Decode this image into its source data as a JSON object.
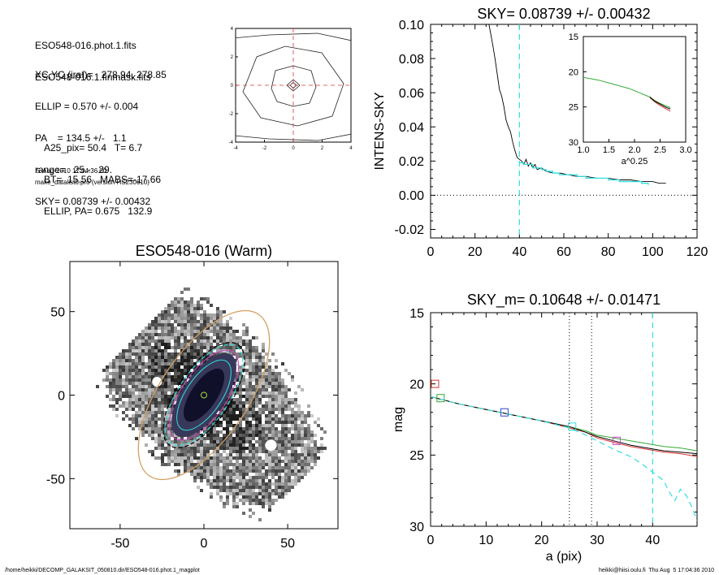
{
  "info": {
    "lines_a": [
      "ESO548-016.phot.1.fits",
      "ESO548-016.1.finmask.fits"
    ],
    "lines_b": [
      "XC,YC (iraf)=   278.94, 278.85",
      "ELLIP = 0.570 +/- 0.004",
      "PA    = 134.5 +/-   1.1",
      "range=   25.-   29.",
      "SKY= 0.08739 +/- 0.00432"
    ],
    "lines_c": [
      "A25_pix= 50.4   T= 6.7",
      "BT=  15.56   MABS=-17.66",
      "ELLIP, PA= 0.675   132.9"
    ],
    "date": "5-Aug-2010 17:04:36.00",
    "program": "make_datalist0.pro (version HS230610)"
  },
  "footer": {
    "left": "/home/heikki/DECOMP_GALAKSIT_050810.dir/ESO548-016.phot.1_magplot",
    "right": "heikki@hiisi.oulu.fi  Thu Aug  5 17:04:36 2010"
  },
  "colors": {
    "cyan": "#33dddd",
    "red": "#dd3333",
    "green": "#33aa33",
    "blue": "#3344cc",
    "magenta": "#cc44cc",
    "orange": "#d4a060"
  },
  "chart_data": [
    {
      "id": "contour",
      "type": "contour",
      "title": "",
      "xlim": [
        -4,
        4
      ],
      "ylim": [
        -4,
        4
      ],
      "xticks": [
        -4,
        -2,
        0,
        2,
        4
      ],
      "yticks": [
        -4,
        -2,
        0,
        2,
        4
      ],
      "crosshair": [
        0,
        0
      ]
    },
    {
      "id": "sky",
      "type": "line",
      "title": "SKY= 0.08739 +/- 0.00432",
      "xlabel": "",
      "ylabel": "INTENS-SKY",
      "xlim": [
        0,
        120
      ],
      "ylim": [
        -0.025,
        0.1
      ],
      "xticks": [
        0,
        20,
        40,
        60,
        80,
        100,
        120
      ],
      "yticks": [
        -0.02,
        0.0,
        0.02,
        0.04,
        0.06,
        0.08,
        0.1
      ],
      "ytick_labels": [
        "-0.02",
        "0.00",
        "0.02",
        "0.04",
        "0.06",
        "0.08",
        "0.10"
      ],
      "vline": 40,
      "hline": 0,
      "series": [
        {
          "color": "black",
          "x": [
            26,
            27,
            28,
            29,
            30,
            31,
            32,
            33,
            34,
            35,
            36,
            37,
            38,
            39,
            40,
            41,
            42,
            43,
            44,
            45,
            46,
            47,
            48,
            50,
            52,
            55,
            58,
            62,
            66,
            70,
            75,
            80,
            85,
            90,
            95,
            100,
            103,
            106
          ],
          "y": [
            0.102,
            0.095,
            0.088,
            0.08,
            0.071,
            0.062,
            0.058,
            0.052,
            0.044,
            0.04,
            0.037,
            0.031,
            0.026,
            0.022,
            0.021,
            0.02,
            0.018,
            0.021,
            0.017,
            0.019,
            0.016,
            0.018,
            0.015,
            0.016,
            0.014,
            0.013,
            0.013,
            0.012,
            0.011,
            0.011,
            0.01,
            0.01,
            0.009,
            0.009,
            0.008,
            0.008,
            0.007,
            0.007
          ]
        },
        {
          "color": "cyan",
          "x": [
            40,
            42,
            44,
            46,
            48,
            50,
            52,
            55,
            58,
            62,
            66,
            70,
            75,
            80,
            85,
            90,
            95,
            98
          ],
          "y": [
            0.019,
            0.018,
            0.018,
            0.016,
            0.016,
            0.015,
            0.014,
            0.013,
            0.012,
            0.012,
            0.011,
            0.01,
            0.01,
            0.009,
            0.008,
            0.008,
            0.007,
            0.006
          ]
        }
      ]
    },
    {
      "id": "sky_inset",
      "type": "line",
      "title": "",
      "xlabel": "a^0.25",
      "xlim": [
        1.0,
        3.0
      ],
      "ylim": [
        30,
        15
      ],
      "xticks": [
        1.0,
        1.5,
        2.0,
        2.5,
        3.0
      ],
      "xtick_labels": [
        "1.0",
        "1.5",
        "2.0",
        "2.5",
        "3.0"
      ],
      "yticks": [
        15,
        20,
        25,
        30
      ],
      "series": [
        {
          "color": "green",
          "x": [
            1.0,
            1.3,
            1.6,
            1.9,
            2.1,
            2.3,
            2.4,
            2.5,
            2.6,
            2.7
          ],
          "y": [
            20.8,
            21.2,
            21.8,
            22.4,
            23.0,
            23.6,
            24.1,
            24.5,
            24.8,
            25.1
          ]
        },
        {
          "color": "red",
          "x": [
            2.3,
            2.4,
            2.5,
            2.6,
            2.7
          ],
          "y": [
            23.7,
            24.3,
            24.8,
            25.2,
            25.6
          ]
        },
        {
          "color": "black",
          "x": [
            2.3,
            2.4,
            2.5,
            2.6,
            2.7
          ],
          "y": [
            23.6,
            24.2,
            24.6,
            25.0,
            25.3
          ]
        }
      ]
    },
    {
      "id": "image",
      "type": "image",
      "title": "ESO548-016 (Warm)",
      "xlim": [
        -80,
        80
      ],
      "ylim": [
        -80,
        80
      ],
      "xticks": [
        -50,
        0,
        50
      ],
      "yticks": [
        -50,
        0,
        50
      ],
      "ellipse": {
        "pa": 134.5,
        "ellip": 0.57
      }
    },
    {
      "id": "mag",
      "type": "line",
      "title": "SKY_m=  0.10648 +/- 0.01471",
      "xlabel": "a (pix)",
      "ylabel": "mag",
      "xlim": [
        0,
        48
      ],
      "ylim": [
        30,
        15
      ],
      "xticks": [
        0,
        10,
        20,
        30,
        40
      ],
      "yticks": [
        15,
        20,
        25,
        30
      ],
      "vlines_dotted": [
        25,
        29
      ],
      "vline_dashed": 40,
      "series": [
        {
          "color": "green",
          "x": [
            0,
            5,
            10,
            15,
            20,
            25,
            28,
            30,
            33,
            36,
            39,
            42,
            45,
            48
          ],
          "y": [
            20.9,
            21.4,
            21.8,
            22.2,
            22.6,
            23.0,
            23.3,
            23.6,
            23.8,
            24.0,
            24.2,
            24.4,
            24.5,
            24.7
          ]
        },
        {
          "color": "red",
          "x": [
            0,
            5,
            10,
            15,
            20,
            25,
            28,
            30,
            33,
            36,
            39,
            42,
            45,
            48
          ],
          "y": [
            20.9,
            21.4,
            21.8,
            22.2,
            22.6,
            23.1,
            23.4,
            23.8,
            24.1,
            24.4,
            24.6,
            24.8,
            24.9,
            25.1
          ]
        },
        {
          "color": "black",
          "x": [
            0,
            5,
            10,
            15,
            20,
            25,
            28,
            30,
            33,
            36,
            39,
            42,
            45,
            48
          ],
          "y": [
            20.9,
            21.4,
            21.8,
            22.2,
            22.6,
            23.0,
            23.4,
            23.7,
            24.0,
            24.3,
            24.5,
            24.7,
            24.8,
            24.9
          ]
        },
        {
          "color": "cyan",
          "dashed": true,
          "x": [
            0,
            5,
            10,
            15,
            20,
            25,
            28,
            30,
            33,
            36,
            38,
            40,
            42,
            43,
            44,
            45,
            46,
            47,
            48
          ],
          "y": [
            20.9,
            21.4,
            21.8,
            22.2,
            22.6,
            23.1,
            23.6,
            24.0,
            24.6,
            25.1,
            25.6,
            26.2,
            26.8,
            27.6,
            28.2,
            27.4,
            27.8,
            28.6,
            29.6
          ]
        }
      ],
      "markers": [
        {
          "x": 0.8,
          "y": 20.0,
          "color": "red"
        },
        {
          "x": 1.8,
          "y": 21.0,
          "color": "green"
        },
        {
          "x": 13.3,
          "y": 22.0,
          "color": "blue"
        },
        {
          "x": 25.5,
          "y": 23.0,
          "color": "cyan"
        },
        {
          "x": 33.5,
          "y": 24.0,
          "color": "magenta"
        }
      ]
    }
  ]
}
